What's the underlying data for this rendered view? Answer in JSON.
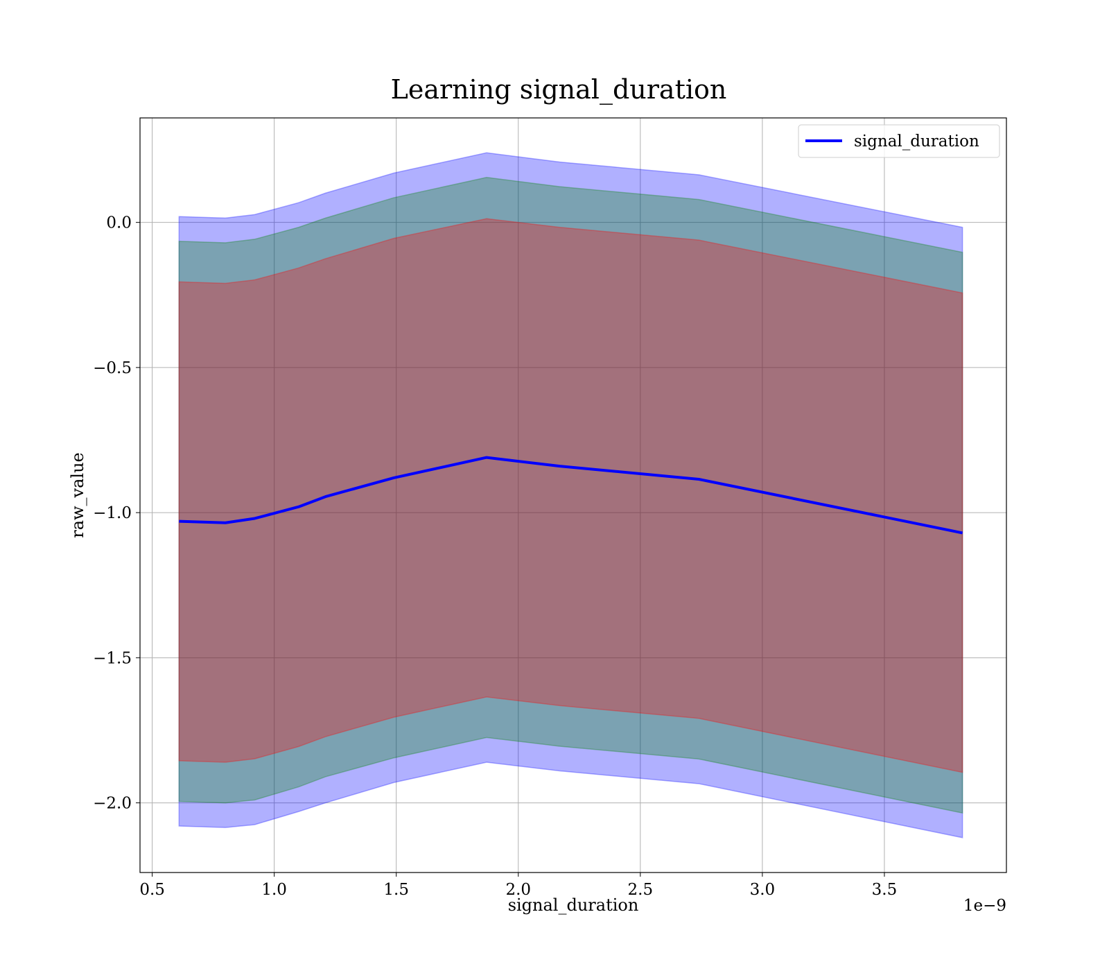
{
  "chart_data": {
    "type": "area",
    "title": "Learning signal_duration",
    "xlabel": "signal_duration",
    "ylabel": "raw_value",
    "x_offset_label": "1e−9",
    "xlim": [
      0.45,
      4.0
    ],
    "ylim": [
      -2.24,
      0.36
    ],
    "xticks": [
      0.5,
      1.0,
      1.5,
      2.0,
      2.5,
      3.0,
      3.5
    ],
    "xtick_labels": [
      "0.5",
      "1.0",
      "1.5",
      "2.0",
      "2.5",
      "3.0",
      "3.5"
    ],
    "yticks": [
      0.0,
      -0.5,
      -1.0,
      -1.5,
      -2.0
    ],
    "ytick_labels": [
      "0.0",
      "−0.5",
      "−1.0",
      "−1.5",
      "−2.0"
    ],
    "grid": true,
    "legend_position": "top-right",
    "x": [
      0.61,
      0.8,
      0.92,
      1.1,
      1.21,
      1.49,
      1.87,
      2.17,
      2.74,
      3.82
    ],
    "series": [
      {
        "name": "signal_duration",
        "color": "#0000ff",
        "values": [
          -1.03,
          -1.035,
          -1.02,
          -0.98,
          -0.945,
          -0.88,
          -0.81,
          -0.84,
          -0.885,
          -1.07
        ]
      }
    ],
    "bands": [
      {
        "color": "#0000ff",
        "opacity": 0.31,
        "upper": [
          0.02,
          0.015,
          0.027,
          0.068,
          0.101,
          0.17,
          0.24,
          0.208,
          0.164,
          -0.017
        ],
        "lower": [
          -2.08,
          -2.085,
          -2.075,
          -2.03,
          -2.0,
          -1.93,
          -1.86,
          -1.89,
          -1.934,
          -2.12
        ]
      },
      {
        "color": "#008000",
        "opacity": 0.3,
        "upper": [
          -0.065,
          -0.07,
          -0.058,
          -0.017,
          0.015,
          0.085,
          0.155,
          0.123,
          0.079,
          -0.103
        ],
        "lower": [
          -1.995,
          -2.0,
          -1.99,
          -1.945,
          -1.91,
          -1.845,
          -1.775,
          -1.805,
          -1.849,
          -2.035
        ]
      },
      {
        "color": "#ff0000",
        "opacity": 0.3,
        "upper": [
          -0.205,
          -0.21,
          -0.198,
          -0.157,
          -0.125,
          -0.055,
          0.013,
          -0.017,
          -0.061,
          -0.243
        ],
        "lower": [
          -1.855,
          -1.86,
          -1.848,
          -1.806,
          -1.772,
          -1.705,
          -1.635,
          -1.665,
          -1.709,
          -1.895
        ]
      }
    ]
  }
}
